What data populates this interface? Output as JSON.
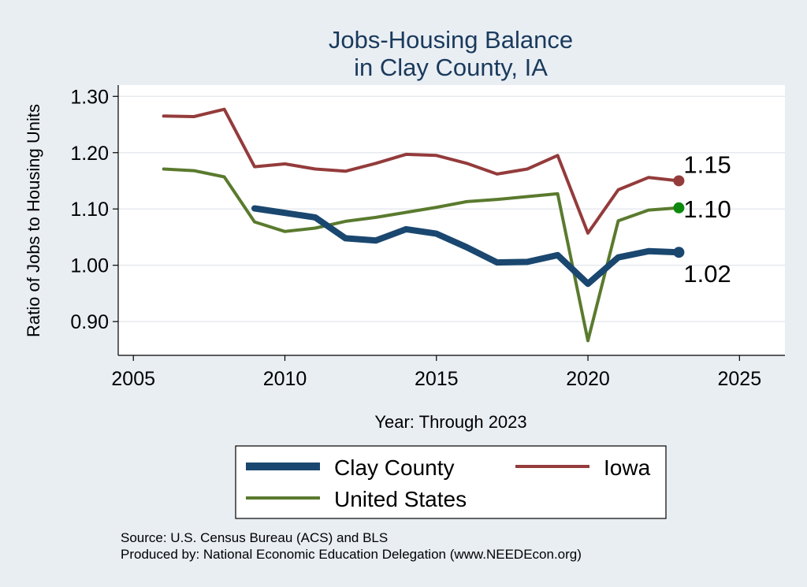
{
  "chart_data": {
    "type": "line",
    "title": [
      "Jobs-Housing Balance",
      "in Clay County, IA"
    ],
    "xlabel": "Year: Through 2023",
    "ylabel": "Ratio of Jobs to Housing Units",
    "xlim": [
      2004.5,
      2026.5
    ],
    "ylim": [
      0.84,
      1.32
    ],
    "xticks": [
      2005,
      2010,
      2015,
      2020,
      2025
    ],
    "yticks": [
      0.9,
      1.0,
      1.1,
      1.2,
      1.3
    ],
    "ytick_labels": [
      "0.90",
      "1.00",
      "1.10",
      "1.20",
      "1.30"
    ],
    "grid": true,
    "series": [
      {
        "name": "Iowa",
        "color": "#943b3b",
        "x": [
          2006,
          2007,
          2008,
          2009,
          2010,
          2011,
          2012,
          2013,
          2014,
          2015,
          2016,
          2017,
          2018,
          2019,
          2020,
          2021,
          2022,
          2023
        ],
        "values": [
          1.265,
          1.264,
          1.277,
          1.175,
          1.18,
          1.171,
          1.167,
          1.181,
          1.197,
          1.195,
          1.181,
          1.162,
          1.171,
          1.195,
          1.057,
          1.134,
          1.156,
          1.15
        ],
        "end_label": "1.15",
        "end_marker": "#943b3b"
      },
      {
        "name": "United States",
        "color": "#5a7a2e",
        "x": [
          2006,
          2007,
          2008,
          2009,
          2010,
          2011,
          2012,
          2013,
          2014,
          2015,
          2016,
          2017,
          2018,
          2019,
          2020,
          2021,
          2022,
          2023
        ],
        "values": [
          1.171,
          1.168,
          1.157,
          1.077,
          1.06,
          1.066,
          1.078,
          1.085,
          1.094,
          1.103,
          1.113,
          1.117,
          1.122,
          1.127,
          0.866,
          1.079,
          1.098,
          1.102
        ],
        "end_label": "1.10",
        "end_marker": "#0d8a0d"
      },
      {
        "name": "Clay County",
        "color": "#1a476f",
        "x": [
          2009,
          2010,
          2011,
          2012,
          2013,
          2014,
          2015,
          2016,
          2017,
          2018,
          2019,
          2020,
          2021,
          2022,
          2023
        ],
        "values": [
          1.101,
          1.093,
          1.085,
          1.048,
          1.044,
          1.064,
          1.056,
          1.032,
          1.005,
          1.006,
          1.018,
          0.967,
          1.014,
          1.025,
          1.023
        ],
        "end_label": "1.02",
        "end_marker": "#1a476f"
      }
    ],
    "legend": [
      {
        "name": "Clay County",
        "color": "#1a476f"
      },
      {
        "name": "Iowa",
        "color": "#943b3b"
      },
      {
        "name": "United States",
        "color": "#5a7a2e"
      }
    ],
    "legend_position": "bottom"
  },
  "source": {
    "line1": "Source: U.S. Census Bureau (ACS) and BLS",
    "line2": "Produced by: National Economic Education Delegation (www.NEEDEcon.org)"
  }
}
